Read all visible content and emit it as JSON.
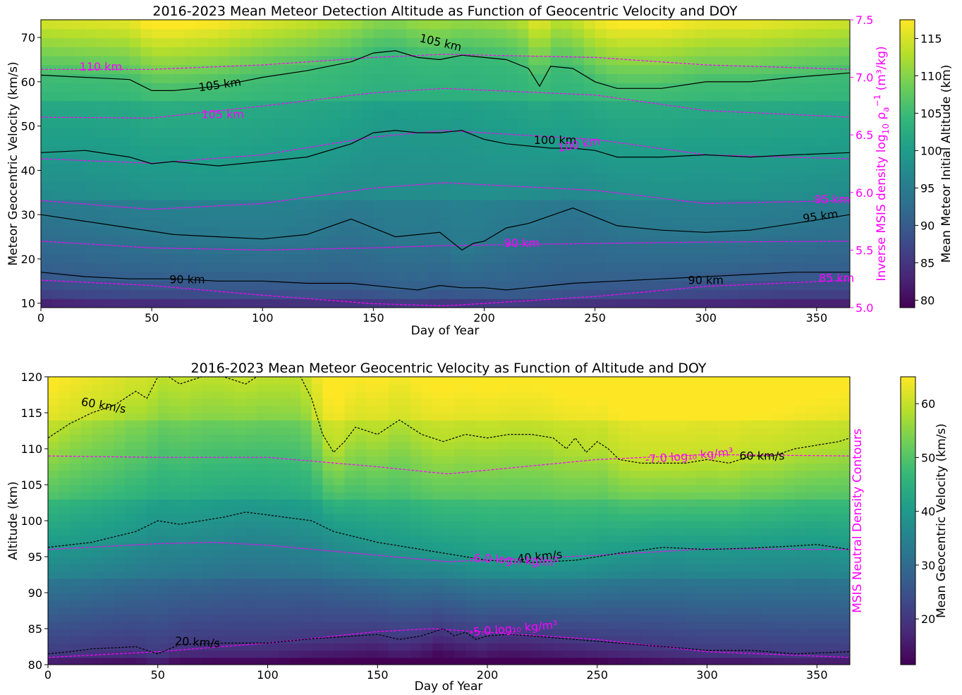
{
  "colors": {
    "magenta": "#ff00ff",
    "black_contour": "#000000",
    "viridis": [
      "#440154",
      "#482878",
      "#3e4989",
      "#31688e",
      "#26828e",
      "#1f9e89",
      "#35b779",
      "#6ece58",
      "#b5de2b",
      "#fde725"
    ]
  },
  "chart_data": [
    {
      "type": "heatmap",
      "title": "2016-2023 Mean Meteor Detection Altitude as Function of Geocentric Velocity and DOY",
      "xlabel": "Day of Year",
      "ylabel": "Meteor Geocentric Velocity (km/s)",
      "y2label": "Inverse MSIS density log",
      "y2label_tail": "(m³/kg)",
      "colorbar_label": "Mean Meteor Initial Altitude (km)",
      "xlim": [
        0,
        365
      ],
      "ylim": [
        9,
        74
      ],
      "y2lim": [
        5.0,
        7.5
      ],
      "clim": [
        79,
        117.5
      ],
      "x_ticks": [
        "0",
        "50",
        "100",
        "150",
        "200",
        "250",
        "300",
        "350"
      ],
      "y_ticks": [
        "10",
        "20",
        "30",
        "40",
        "50",
        "60",
        "70"
      ],
      "y2_ticks": [
        "5.0",
        "5.5",
        "6.0",
        "6.5",
        "7.0",
        "7.5"
      ],
      "cbar_ticks": [
        "80",
        "85",
        "90",
        "95",
        "100",
        "105",
        "110",
        "115"
      ],
      "black_contours": [
        {
          "level": "105 km",
          "x": [
            0,
            20,
            40,
            50,
            60,
            80,
            100,
            120,
            140,
            150,
            160,
            170,
            180,
            190,
            200,
            210,
            220,
            225,
            230,
            240,
            250,
            260,
            280,
            300,
            320,
            340,
            365
          ],
          "y": [
            61.5,
            61,
            60.5,
            58,
            58,
            59,
            61,
            62.5,
            64.5,
            66.5,
            67,
            65.5,
            65,
            66,
            65.5,
            65,
            63,
            59,
            63.5,
            63,
            60,
            58.5,
            58.5,
            60,
            60,
            61,
            62
          ]
        },
        {
          "level": "100 km",
          "x": [
            0,
            20,
            40,
            50,
            60,
            80,
            100,
            120,
            140,
            150,
            160,
            170,
            180,
            190,
            200,
            210,
            220,
            230,
            240,
            250,
            260,
            280,
            300,
            320,
            340,
            365
          ],
          "y": [
            44,
            44.5,
            43,
            41.5,
            42,
            41,
            42,
            43,
            46,
            48.5,
            49,
            48.5,
            48.5,
            49,
            47,
            46,
            45.5,
            45,
            45,
            44.5,
            43,
            43,
            43.5,
            43,
            43.5,
            44
          ]
        },
        {
          "level": "95 km",
          "x": [
            0,
            20,
            40,
            60,
            80,
            100,
            120,
            140,
            160,
            180,
            190,
            195,
            200,
            210,
            220,
            240,
            260,
            280,
            300,
            320,
            340,
            365
          ],
          "y": [
            30,
            28.5,
            27,
            25.5,
            25,
            24.5,
            25.5,
            29,
            25,
            26,
            22,
            23.5,
            24,
            27,
            28,
            31.5,
            27.5,
            26.5,
            26,
            26.5,
            28,
            30
          ]
        },
        {
          "level": "90 km",
          "x": [
            0,
            20,
            40,
            60,
            80,
            100,
            120,
            140,
            160,
            170,
            180,
            190,
            200,
            210,
            220,
            230,
            240,
            260,
            280,
            300,
            320,
            340,
            365
          ],
          "y": [
            17,
            16,
            15.5,
            15.5,
            15,
            15,
            14.5,
            14.5,
            13.5,
            13,
            14,
            13.5,
            13.5,
            13,
            13.5,
            14,
            14.5,
            15,
            15.5,
            16,
            16.5,
            17,
            17
          ]
        }
      ],
      "magenta_contours": [
        {
          "level": "110 km",
          "x": [
            0,
            50,
            100,
            150,
            182,
            250,
            300,
            365
          ],
          "y": [
            62.8,
            62.8,
            63.8,
            65.5,
            66.2,
            65.5,
            63.8,
            62.8
          ]
        },
        {
          "level": "105 km",
          "x": [
            0,
            50,
            100,
            150,
            182,
            250,
            300,
            365
          ],
          "y": [
            52,
            51.8,
            54.5,
            57.5,
            58.5,
            57,
            53.5,
            52
          ]
        },
        {
          "level": "100 km",
          "x": [
            0,
            50,
            100,
            150,
            182,
            250,
            300,
            365
          ],
          "y": [
            42.6,
            41.6,
            43.5,
            47.5,
            49,
            47,
            43.5,
            42.6
          ]
        },
        {
          "level": "95 km",
          "x": [
            0,
            50,
            100,
            150,
            182,
            250,
            300,
            365
          ],
          "y": [
            33.2,
            31.2,
            32.5,
            36,
            37.2,
            35.5,
            32.5,
            33.2
          ]
        },
        {
          "level": "90 km",
          "x": [
            0,
            50,
            100,
            150,
            182,
            250,
            300,
            365
          ],
          "y": [
            24,
            22.5,
            22,
            22.5,
            23,
            23.5,
            23.8,
            24
          ]
        },
        {
          "level": "85 km",
          "x": [
            0,
            50,
            100,
            150,
            182,
            250,
            300,
            365
          ],
          "y": [
            15.2,
            14,
            11.8,
            9.9,
            9.4,
            11.5,
            13.8,
            15.2
          ]
        }
      ],
      "black_labels": [
        {
          "text": "105 km",
          "x": 81,
          "y": 58.5,
          "rot": -8
        },
        {
          "text": "105 km",
          "x": 180,
          "y": 68,
          "rot": 13
        },
        {
          "text": "100 km",
          "x": 232,
          "y": 46,
          "rot": 0
        },
        {
          "text": "95 km",
          "x": 352,
          "y": 28.8,
          "rot": -8
        },
        {
          "text": "90 km",
          "x": 66,
          "y": 14.5,
          "rot": 0
        },
        {
          "text": "90 km",
          "x": 300,
          "y": 14.3,
          "rot": 0
        }
      ],
      "magenta_labels": [
        {
          "text": "110 km",
          "x": 27,
          "y": 62.5,
          "rot": 0
        },
        {
          "text": "105 km",
          "x": 82,
          "y": 51.8,
          "rot": 0
        },
        {
          "text": "100 km",
          "x": 243,
          "y": 45,
          "rot": -10
        },
        {
          "text": "95 km",
          "x": 357,
          "y": 32.6,
          "rot": 0
        },
        {
          "text": "90 km",
          "x": 217,
          "y": 22.7,
          "rot": 0
        },
        {
          "text": "85 km",
          "x": 359,
          "y": 14.8,
          "rot": 0
        }
      ]
    },
    {
      "type": "heatmap",
      "title": "2016-2023 Mean Meteor Geocentric Velocity as Function of Altitude and DOY",
      "xlabel": "Day of Year",
      "ylabel": "Altitude (km)",
      "y2label": "MSIS Neutral Density Contours",
      "colorbar_label": "Mean Geocentric Velocity (km/s)",
      "xlim": [
        0,
        365
      ],
      "ylim": [
        80,
        120
      ],
      "clim": [
        11.5,
        65
      ],
      "x_ticks": [
        "0",
        "50",
        "100",
        "150",
        "200",
        "250",
        "300",
        "350"
      ],
      "y_ticks": [
        "80",
        "85",
        "90",
        "95",
        "100",
        "105",
        "110",
        "115",
        "120"
      ],
      "cbar_ticks": [
        "20",
        "30",
        "40",
        "50",
        "60"
      ],
      "black_contours": [
        {
          "level": "60 km/s",
          "x": [
            0,
            10,
            20,
            30,
            40,
            45,
            50,
            55,
            60,
            70,
            80,
            90,
            95,
            100,
            110,
            115,
            120,
            125,
            130,
            135,
            140,
            150,
            160,
            170,
            180,
            190,
            200,
            210,
            220,
            230,
            236,
            240,
            245,
            250,
            255,
            260,
            270,
            280,
            290,
            300,
            310,
            320,
            330,
            340,
            350,
            360,
            365
          ],
          "y": [
            111.5,
            113.5,
            115,
            116,
            118,
            117,
            120,
            120,
            119,
            120,
            120,
            119,
            120,
            120,
            120,
            120,
            117,
            112,
            109.5,
            111,
            113,
            112,
            114,
            112,
            111,
            112,
            111.5,
            112,
            112,
            111.5,
            110,
            111.5,
            109.5,
            111,
            110,
            108.5,
            108,
            108,
            108,
            108.5,
            108,
            109,
            109,
            110,
            110.5,
            111,
            111.5
          ]
        },
        {
          "level": "40 km/s",
          "x": [
            0,
            20,
            40,
            50,
            60,
            80,
            90,
            100,
            120,
            130,
            150,
            170,
            180,
            190,
            200,
            220,
            240,
            260,
            280,
            300,
            320,
            340,
            350,
            365
          ],
          "y": [
            96.3,
            97,
            98.5,
            100,
            99.5,
            100.5,
            101.2,
            100.8,
            100,
            98.5,
            97,
            96,
            95.5,
            95,
            94.5,
            94.2,
            94.5,
            95.5,
            96.3,
            96,
            96.2,
            96.5,
            96.7,
            96
          ]
        },
        {
          "level": "20 km/s",
          "x": [
            0,
            10,
            20,
            40,
            50,
            60,
            80,
            100,
            120,
            140,
            150,
            160,
            170,
            180,
            185,
            190,
            195,
            200,
            210,
            220,
            240,
            260,
            280,
            300,
            320,
            340,
            365
          ],
          "y": [
            81.5,
            81.8,
            82.2,
            82.5,
            81.5,
            82.8,
            83,
            83,
            83.6,
            84,
            84.2,
            83.5,
            84,
            85,
            84,
            84.5,
            83.5,
            84,
            84.2,
            84,
            83.5,
            83,
            82.5,
            82,
            82,
            81.5,
            81.8
          ]
        }
      ],
      "magenta_contours": [
        {
          "level": "-7.0",
          "x": [
            0,
            50,
            100,
            150,
            182,
            250,
            300,
            365
          ],
          "y": [
            109,
            108.8,
            108.8,
            107.5,
            106.5,
            108.5,
            109.2,
            109
          ]
        },
        {
          "level": "-6.0",
          "x": [
            0,
            50,
            75,
            100,
            150,
            182,
            250,
            300,
            365
          ],
          "y": [
            96,
            96.8,
            97,
            96.6,
            95.2,
            94.3,
            95.2,
            96.1,
            96
          ]
        },
        {
          "level": "-5.0",
          "x": [
            0,
            50,
            100,
            150,
            175,
            250,
            300,
            365
          ],
          "y": [
            81,
            81.8,
            83,
            84.6,
            85,
            83.5,
            81.8,
            81
          ]
        }
      ],
      "black_labels": [
        {
          "text": "60 km/s",
          "x": 25,
          "y": 115.5,
          "rot": 10
        },
        {
          "text": "60 km/s",
          "x": 325,
          "y": 108.5,
          "rot": 0
        },
        {
          "text": "40 km/s",
          "x": 224,
          "y": 94.5,
          "rot": -6
        },
        {
          "text": "20 km/s",
          "x": 68,
          "y": 82.6,
          "rot": 3
        }
      ],
      "magenta_labels": [
        {
          "text": "-7.0 log₁₀ kg/m³",
          "x": 292,
          "y": 108.5,
          "rot": -5
        },
        {
          "text": "-6.0 log₁₀ kg/m³",
          "x": 212,
          "y": 94,
          "rot": 3
        },
        {
          "text": "-5.0 log₁₀ kg/m³",
          "x": 212,
          "y": 84.5,
          "rot": -5
        }
      ]
    }
  ]
}
